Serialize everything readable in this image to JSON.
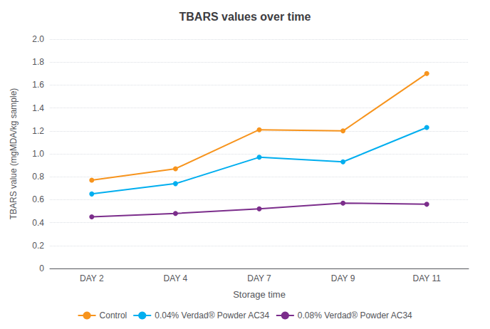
{
  "chart_data": {
    "type": "line",
    "title": "TBARS values over time",
    "xlabel": "Storage time",
    "ylabel": "TBARS value (mgMDA/kg sample)",
    "categories": [
      "DAY 2",
      "DAY 4",
      "DAY 7",
      "DAY 9",
      "DAY 11"
    ],
    "series": [
      {
        "name": "Control",
        "color": "#F7941D",
        "marker": "circle",
        "values": [
          0.77,
          0.87,
          1.21,
          1.2,
          1.7
        ]
      },
      {
        "name": "0.04% Verdad® Powder AC34",
        "color": "#00AEEF",
        "marker": "circle",
        "values": [
          0.65,
          0.74,
          0.97,
          0.93,
          1.23
        ]
      },
      {
        "name": "0.08% Verdad® Powder AC34",
        "color": "#7B2D8B",
        "marker": "circle",
        "values": [
          0.45,
          0.48,
          0.52,
          0.57,
          0.56
        ]
      }
    ],
    "ylim": [
      0,
      2.0
    ],
    "yticks": [
      0,
      0.2,
      0.4,
      0.6,
      {
        "value": 1.0,
        "label": "1.0"
      },
      0.8,
      1.2,
      1.4,
      1.6,
      1.8,
      {
        "value": 2.0,
        "label": "2.0"
      }
    ],
    "grid": true,
    "legend": "bottom"
  }
}
